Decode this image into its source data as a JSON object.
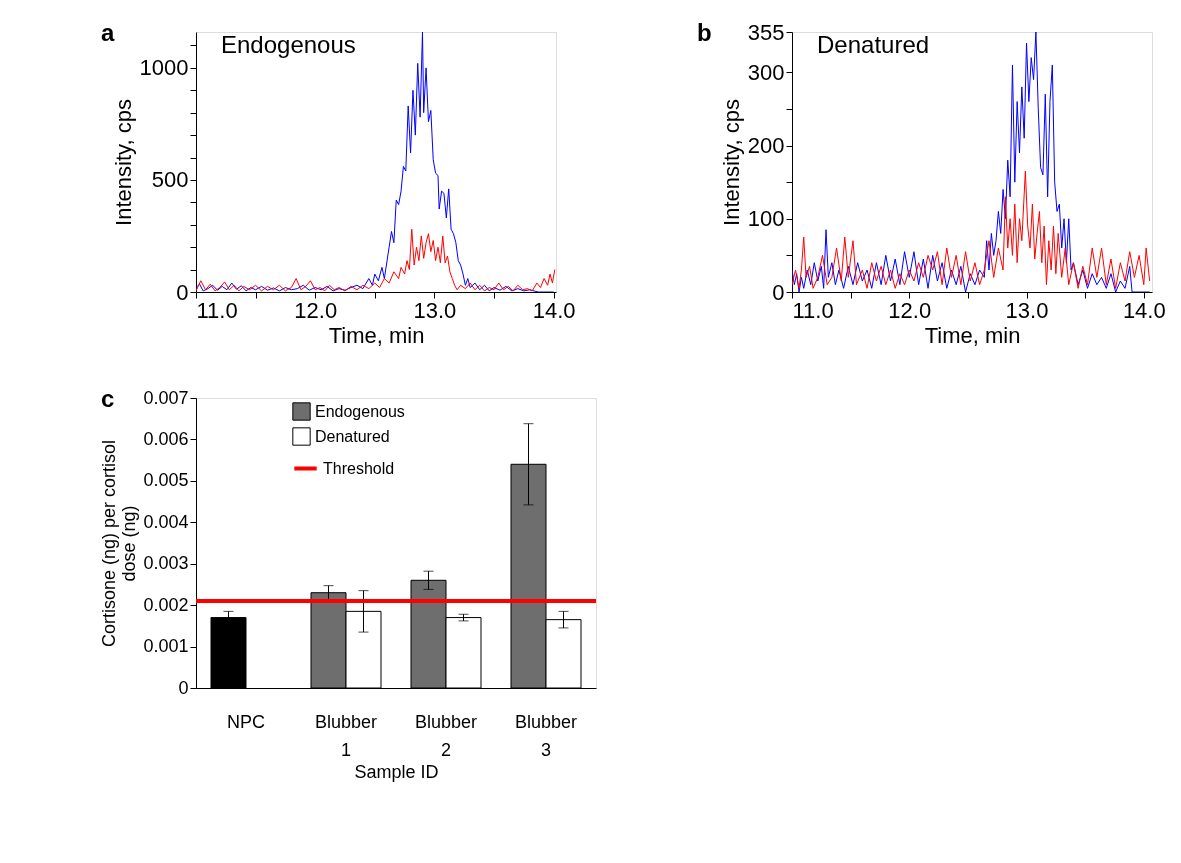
{
  "chart_data": [
    {
      "type": "line",
      "title": "Endogenous",
      "annotations": [
        "a"
      ],
      "xlabel": "Time, min",
      "ylabel": "Intensity, cps",
      "xlim": [
        11.0,
        14.02
      ],
      "xticks": [
        {
          "value": 11,
          "label": "11.0"
        },
        {
          "value": 11.5,
          "label": null
        },
        {
          "value": 12,
          "label": "12.0"
        },
        {
          "value": 12.5,
          "label": null
        },
        {
          "value": 13,
          "label": "13.0"
        },
        {
          "value": 13.5,
          "label": null
        },
        {
          "value": 14,
          "label": "14.0"
        }
      ],
      "ylim": [
        0,
        1160
      ],
      "yticks": [
        0,
        {
          "value": 100,
          "label": null
        },
        {
          "value": 200,
          "label": null
        },
        {
          "value": 300,
          "label": null
        },
        {
          "value": 400,
          "label": null
        },
        500,
        {
          "value": 600,
          "label": null
        },
        {
          "value": 700,
          "label": null
        },
        {
          "value": 800,
          "label": null
        },
        {
          "value": 900,
          "label": null
        },
        1000,
        {
          "value": 1100,
          "label": null
        }
      ],
      "series": [
        {
          "color": "#0000ff",
          "x": [
            11.0,
            11.03,
            11.06,
            11.1,
            11.14,
            11.18,
            11.22,
            11.26,
            11.3,
            11.34,
            11.38,
            11.42,
            11.46,
            11.5,
            11.55,
            11.6,
            11.65,
            11.7,
            11.75,
            11.8,
            11.85,
            11.9,
            11.95,
            12.0,
            12.05,
            12.1,
            12.15,
            12.2,
            12.25,
            12.3,
            12.35,
            12.4,
            12.45,
            12.48,
            12.5,
            12.53,
            12.56,
            12.58,
            12.6,
            12.62,
            12.64,
            12.66,
            12.68,
            12.7,
            12.72,
            12.74,
            12.76,
            12.78,
            12.8,
            12.82,
            12.84,
            12.86,
            12.88,
            12.9,
            12.91,
            12.93,
            12.95,
            12.97,
            12.99,
            13.01,
            13.03,
            13.04,
            13.06,
            13.08,
            13.1,
            13.12,
            13.14,
            13.16,
            13.18,
            13.2,
            13.22,
            13.24,
            13.26,
            13.28,
            13.3,
            13.34,
            13.38,
            13.42,
            13.46,
            13.5,
            13.55,
            13.6,
            13.65,
            13.7,
            13.75,
            13.8,
            13.87,
            14.0
          ],
          "values": [
            20,
            35,
            5,
            15,
            30,
            8,
            25,
            10,
            40,
            12,
            28,
            5,
            20,
            10,
            25,
            8,
            18,
            5,
            20,
            10,
            15,
            30,
            8,
            20,
            10,
            25,
            5,
            15,
            8,
            20,
            30,
            15,
            60,
            30,
            80,
            50,
            110,
            60,
            130,
            200,
            270,
            220,
            410,
            390,
            450,
            560,
            540,
            830,
            620,
            900,
            700,
            1020,
            780,
            1160,
            800,
            1000,
            760,
            810,
            590,
            530,
            520,
            370,
            450,
            440,
            330,
            460,
            280,
            260,
            220,
            140,
            120,
            80,
            30,
            60,
            20,
            40,
            10,
            30,
            5,
            20,
            8,
            25,
            5,
            15,
            5,
            10,
            0,
            0
          ]
        },
        {
          "color": "#ff0000",
          "x": [
            11.0,
            11.04,
            11.08,
            11.12,
            11.16,
            11.2,
            11.24,
            11.28,
            11.32,
            11.36,
            11.4,
            11.45,
            11.5,
            11.55,
            11.6,
            11.65,
            11.7,
            11.75,
            11.8,
            11.84,
            11.88,
            11.92,
            11.96,
            12.0,
            12.04,
            12.08,
            12.12,
            12.16,
            12.2,
            12.25,
            12.3,
            12.35,
            12.4,
            12.45,
            12.5,
            12.54,
            12.58,
            12.62,
            12.66,
            12.7,
            12.72,
            12.75,
            12.77,
            12.79,
            12.81,
            12.83,
            12.85,
            12.87,
            12.89,
            12.91,
            12.93,
            12.95,
            12.97,
            12.99,
            13.01,
            13.03,
            13.05,
            13.07,
            13.09,
            13.11,
            13.13,
            13.15,
            13.17,
            13.19,
            13.22,
            13.26,
            13.3,
            13.34,
            13.38,
            13.42,
            13.46,
            13.5,
            13.54,
            13.58,
            13.62,
            13.66,
            13.7,
            13.74,
            13.78,
            13.82,
            13.86,
            13.89,
            13.92,
            13.95,
            13.97,
            13.99,
            14.01
          ],
          "values": [
            5,
            50,
            10,
            35,
            5,
            20,
            45,
            10,
            30,
            5,
            25,
            10,
            30,
            5,
            25,
            10,
            30,
            5,
            20,
            60,
            10,
            25,
            50,
            10,
            20,
            5,
            30,
            10,
            20,
            5,
            25,
            10,
            30,
            15,
            40,
            20,
            60,
            40,
            90,
            60,
            110,
            80,
            140,
            100,
            280,
            120,
            200,
            140,
            250,
            150,
            220,
            260,
            180,
            230,
            140,
            200,
            130,
            250,
            130,
            160,
            90,
            60,
            30,
            10,
            30,
            15,
            40,
            10,
            30,
            5,
            20,
            10,
            40,
            10,
            25,
            5,
            30,
            10,
            15,
            5,
            40,
            20,
            60,
            30,
            80,
            40,
            100
          ]
        }
      ]
    },
    {
      "type": "line",
      "title": "Denatured",
      "annotations": [
        "b"
      ],
      "xlabel": "Time, min",
      "ylabel": "Intensity, cps",
      "xlim": [
        11.0,
        14.07
      ],
      "xticks": [
        {
          "value": 11,
          "label": "11.0"
        },
        {
          "value": 11.5,
          "label": null
        },
        {
          "value": 12,
          "label": "12.0"
        },
        {
          "value": 12.5,
          "label": null
        },
        {
          "value": 13,
          "label": "13.0"
        },
        {
          "value": 13.5,
          "label": null
        },
        {
          "value": 14,
          "label": "14.0"
        }
      ],
      "ylim": [
        0,
        355
      ],
      "yticks": [
        0,
        {
          "value": 50,
          "label": null
        },
        100,
        {
          "value": 150,
          "label": null
        },
        200,
        {
          "value": 250,
          "label": null
        },
        300,
        355
      ],
      "series": [
        {
          "color": "#0000ff",
          "x": [
            11.0,
            11.02,
            11.04,
            11.06,
            11.08,
            11.1,
            11.13,
            11.16,
            11.19,
            11.22,
            11.25,
            11.27,
            11.29,
            11.31,
            11.34,
            11.37,
            11.4,
            11.44,
            11.48,
            11.52,
            11.56,
            11.6,
            11.64,
            11.68,
            11.72,
            11.76,
            11.8,
            11.84,
            11.88,
            11.92,
            11.96,
            12.0,
            12.04,
            12.08,
            12.12,
            12.16,
            12.2,
            12.24,
            12.28,
            12.32,
            12.36,
            12.4,
            12.44,
            12.48,
            12.52,
            12.56,
            12.6,
            12.64,
            12.66,
            12.68,
            12.7,
            12.72,
            12.74,
            12.76,
            12.78,
            12.8,
            12.82,
            12.84,
            12.86,
            12.88,
            12.9,
            12.92,
            12.94,
            12.96,
            12.98,
            13.0,
            13.02,
            13.04,
            13.06,
            13.08,
            13.1,
            13.12,
            13.14,
            13.16,
            13.18,
            13.2,
            13.22,
            13.24,
            13.26,
            13.28,
            13.3,
            13.32,
            13.34,
            13.36,
            13.38,
            13.4,
            13.44,
            13.48,
            13.52,
            13.56,
            13.6,
            13.64,
            13.68,
            13.72,
            13.76,
            13.8,
            13.84,
            13.88,
            13.9,
            14.05
          ],
          "values": [
            30,
            10,
            25,
            0,
            20,
            5,
            30,
            10,
            40,
            15,
            35,
            5,
            85,
            20,
            40,
            10,
            30,
            5,
            35,
            10,
            40,
            15,
            30,
            5,
            40,
            10,
            50,
            15,
            45,
            10,
            55,
            20,
            55,
            10,
            45,
            5,
            50,
            15,
            40,
            5,
            30,
            10,
            35,
            0,
            25,
            10,
            30,
            20,
            70,
            30,
            80,
            50,
            70,
            110,
            80,
            140,
            100,
            180,
            130,
            310,
            150,
            260,
            190,
            280,
            210,
            340,
            260,
            320,
            290,
            355,
            250,
            170,
            160,
            270,
            130,
            260,
            310,
            150,
            110,
            120,
            60,
            100,
            40,
            100,
            30,
            40,
            10,
            30,
            5,
            25,
            10,
            20,
            5,
            25,
            0,
            15,
            5,
            35,
            0,
            0
          ]
        },
        {
          "color": "#ff0000",
          "x": [
            11.0,
            11.03,
            11.06,
            11.08,
            11.1,
            11.12,
            11.15,
            11.18,
            11.22,
            11.26,
            11.3,
            11.34,
            11.38,
            11.42,
            11.45,
            11.48,
            11.52,
            11.55,
            11.6,
            11.64,
            11.68,
            11.72,
            11.76,
            11.8,
            11.84,
            11.88,
            11.92,
            11.96,
            12.0,
            12.04,
            12.08,
            12.12,
            12.16,
            12.2,
            12.24,
            12.28,
            12.32,
            12.36,
            12.4,
            12.44,
            12.48,
            12.52,
            12.56,
            12.6,
            12.64,
            12.68,
            12.72,
            12.76,
            12.8,
            12.82,
            12.84,
            12.86,
            12.88,
            12.9,
            12.92,
            12.94,
            12.96,
            12.99,
            13.01,
            13.03,
            13.05,
            13.07,
            13.09,
            13.11,
            13.13,
            13.15,
            13.17,
            13.19,
            13.21,
            13.23,
            13.25,
            13.27,
            13.3,
            13.33,
            13.36,
            13.4,
            13.44,
            13.48,
            13.52,
            13.56,
            13.6,
            13.64,
            13.68,
            13.72,
            13.76,
            13.8,
            13.84,
            13.88,
            13.92,
            13.96,
            14.0,
            14.02,
            14.05
          ],
          "values": [
            10,
            30,
            5,
            30,
            75,
            20,
            35,
            5,
            20,
            50,
            10,
            20,
            60,
            15,
            75,
            20,
            70,
            10,
            30,
            5,
            40,
            15,
            35,
            10,
            30,
            5,
            25,
            10,
            30,
            15,
            40,
            20,
            50,
            30,
            55,
            10,
            60,
            20,
            50,
            10,
            55,
            15,
            40,
            10,
            30,
            70,
            20,
            60,
            30,
            130,
            60,
            100,
            50,
            120,
            40,
            100,
            70,
            165,
            90,
            60,
            120,
            45,
            80,
            110,
            40,
            90,
            10,
            70,
            30,
            90,
            25,
            80,
            20,
            60,
            10,
            40,
            5,
            35,
            10,
            60,
            20,
            60,
            10,
            45,
            5,
            40,
            15,
            55,
            20,
            50,
            10,
            60,
            15
          ]
        }
      ]
    },
    {
      "type": "bar",
      "annotations": [
        "c"
      ],
      "xlabel": "Sample ID",
      "ylabel": "Cortisone (ng) per cortisol dose (ng)",
      "categories": [
        "NPC",
        "Blubber 1",
        "Blubber 2",
        "Blubber 3"
      ],
      "ylim": [
        0,
        0.007
      ],
      "yticks": [
        0,
        0.001,
        0.002,
        0.003,
        0.004,
        0.005,
        0.006,
        0.007
      ],
      "legend": "top",
      "series": [
        {
          "name": "Endogenous",
          "color": "#6e6e6e",
          "colors": [
            "#000000",
            "#6e6e6e",
            "#6e6e6e",
            "#6e6e6e"
          ],
          "values": [
            0.0017,
            0.0023,
            0.0026,
            0.0054
          ],
          "errors": [
            0.00015,
            0.00017,
            0.00022,
            0.00098
          ]
        },
        {
          "name": "Denatured",
          "color": "#ffffff",
          "values": [
            null,
            0.00185,
            0.0017,
            0.00165
          ],
          "errors": [
            null,
            0.0005,
            8e-05,
            0.0002
          ]
        }
      ],
      "ref_lines": [
        {
          "axis": "y",
          "value": 0.0021,
          "label": "Threshold",
          "color": "#ff0000"
        }
      ]
    }
  ]
}
